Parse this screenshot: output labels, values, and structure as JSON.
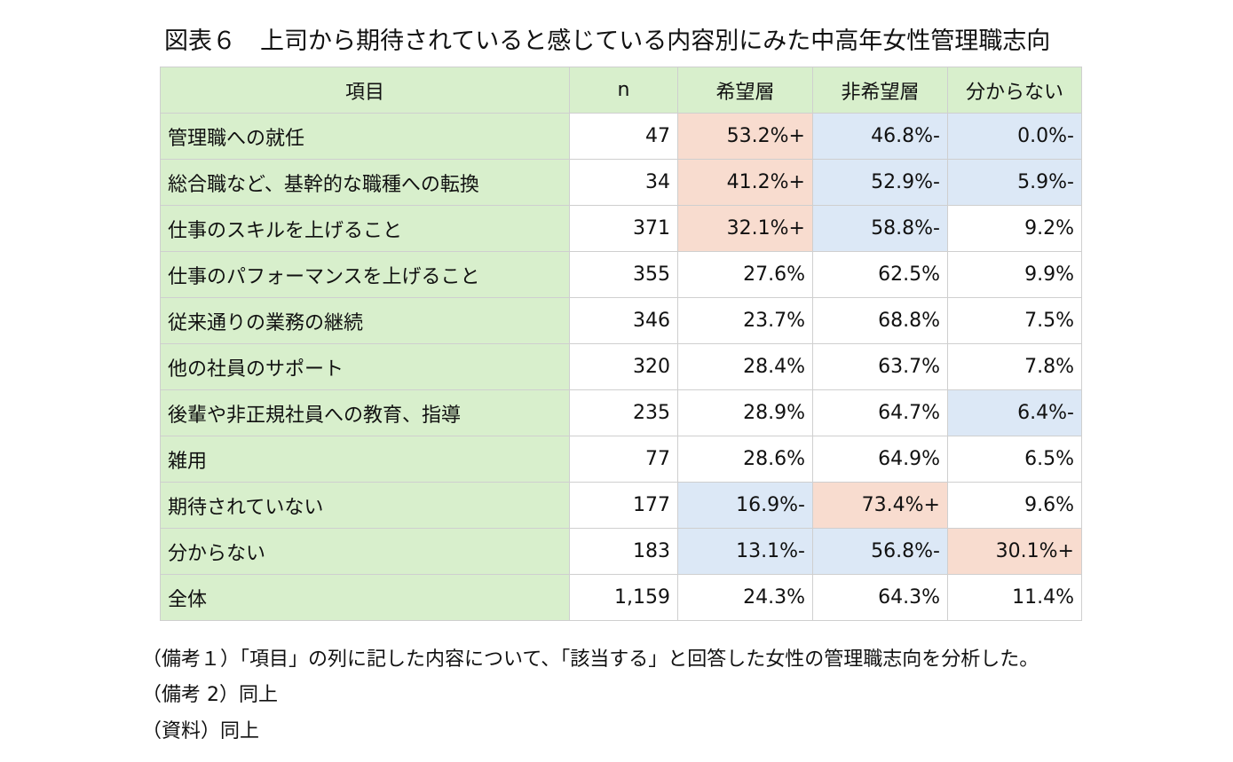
{
  "title": "図表６　上司から期待されていると感じている内容別にみた中高年女性管理職志向",
  "table": {
    "header": [
      "項目",
      "n",
      "希望層",
      "非希望層",
      "分からない"
    ],
    "rows": [
      [
        "管理職への就任",
        "47",
        "53.2%+",
        "46.8%-",
        "0.0%-"
      ],
      [
        "総合職など、基幹的な職種への転換",
        "34",
        "41.2%+",
        "52.9%-",
        "5.9%-"
      ],
      [
        "仕事のスキルを上げること",
        "371",
        "32.1%+",
        "58.8%-",
        "9.2%"
      ],
      [
        "仕事のパフォーマンスを上げること",
        "355",
        "27.6%",
        "62.5%",
        "9.9%"
      ],
      [
        "従来通りの業務の継続",
        "346",
        "23.7%",
        "68.8%",
        "7.5%"
      ],
      [
        "他の社員のサポート",
        "320",
        "28.4%",
        "63.7%",
        "7.8%"
      ],
      [
        "後輩や非正規社員への教育、指導",
        "235",
        "28.9%",
        "64.7%",
        "6.4%-"
      ],
      [
        "雑用",
        "77",
        "28.6%",
        "64.9%",
        "6.5%"
      ],
      [
        "期待されていない",
        "177",
        "16.9%-",
        "73.4%+",
        "9.6%"
      ],
      [
        "分からない",
        "183",
        "13.1%-",
        "56.8%-",
        "30.1%+"
      ],
      [
        "全体",
        "1,159",
        "24.3%",
        "64.3%",
        "11.4%"
      ]
    ]
  },
  "notes": [
    "（備考１）「項目」の列に記した内容について、「該当する」と回答した女性の管理職志向を分析した。",
    "（備考 2）同上",
    "（資料）同上"
  ]
}
